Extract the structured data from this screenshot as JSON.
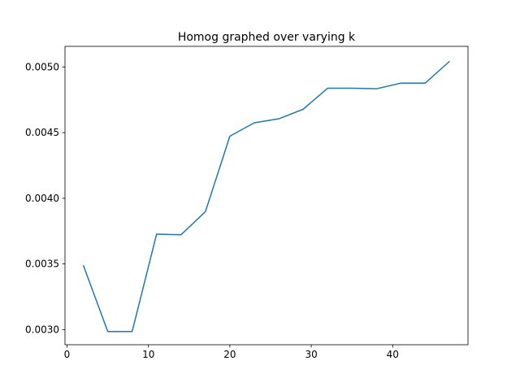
{
  "chart_data": {
    "type": "line",
    "title": "Homog graphed over varying k",
    "xlabel": "",
    "ylabel": "",
    "xlim": [
      -0.25,
      49.25
    ],
    "ylim": [
      0.002885,
      0.005157
    ],
    "xticks": [
      0,
      10,
      20,
      30,
      40
    ],
    "xtick_labels": [
      "0",
      "10",
      "20",
      "30",
      "40"
    ],
    "yticks": [
      0.003,
      0.0035,
      0.004,
      0.0045,
      0.005
    ],
    "ytick_labels": [
      "0.0030",
      "0.0035",
      "0.0040",
      "0.0045",
      "0.0050"
    ],
    "grid": false,
    "series": [
      {
        "color": "#1f77b4",
        "x": [
          2,
          5,
          8,
          11,
          14,
          17,
          20,
          23,
          26,
          29,
          32,
          35,
          38,
          41,
          44,
          47
        ],
        "y": [
          0.00349,
          0.002986,
          0.002986,
          0.003727,
          0.003722,
          0.003899,
          0.004473,
          0.004575,
          0.004605,
          0.004678,
          0.004838,
          0.004838,
          0.004834,
          0.004877,
          0.004877,
          0.005044
        ]
      }
    ]
  }
}
